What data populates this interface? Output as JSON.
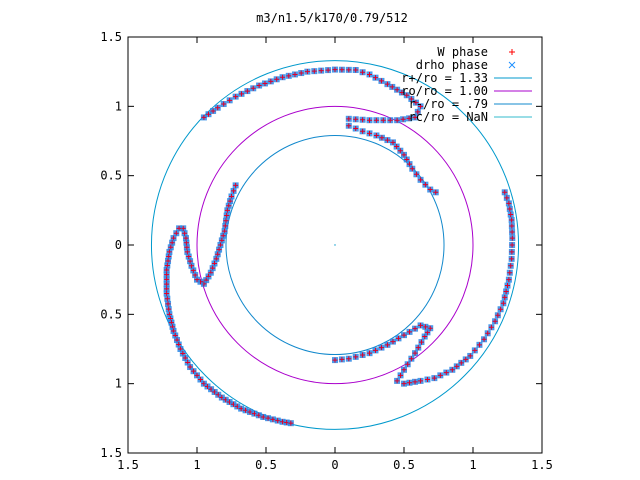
{
  "chart_data": {
    "type": "scatter",
    "title": "m3/n1.5/k170/0.79/512",
    "xlim": [
      -1.5,
      1.5
    ],
    "ylim": [
      -1.5,
      1.5
    ],
    "xticks": [
      -1.5,
      -1,
      -0.5,
      0,
      0.5,
      1,
      1.5
    ],
    "yticks": [
      -1.5,
      -1,
      -0.5,
      0,
      0.5,
      1,
      1.5
    ],
    "xtick_labels": [
      "1.5",
      "1",
      "0.5",
      "0",
      "0.5",
      "1",
      "1.5"
    ],
    "ytick_labels": [
      "1.5",
      "1",
      "0.5",
      "0",
      "0.5",
      "1",
      "1.5"
    ],
    "grid": false,
    "legend_position": "top-right",
    "series": [
      {
        "name": "W phase",
        "marker": "+",
        "color": "#ff0000"
      },
      {
        "name": "drho phase",
        "marker": "x",
        "color": "#1e90ff"
      }
    ],
    "circles": [
      {
        "name": "r+/ro = 1.33",
        "radius": 1.33,
        "color": "#0099cc"
      },
      {
        "name": "ro/ro = 1.00",
        "radius": 1.0,
        "color": "#aa00cc"
      },
      {
        "name": "r-/ro = .79",
        "radius": 0.79,
        "color": "#1188cc"
      },
      {
        "name": "rc/ro = NaN",
        "radius": null,
        "color": "#33bbcc"
      }
    ],
    "phase_curve": [
      [
        -0.95,
        0.92
      ],
      [
        -0.85,
        0.99
      ],
      [
        -0.72,
        1.07
      ],
      [
        -0.55,
        1.15
      ],
      [
        -0.38,
        1.21
      ],
      [
        -0.2,
        1.25
      ],
      [
        0.0,
        1.265
      ],
      [
        0.15,
        1.262
      ],
      [
        0.25,
        1.23
      ],
      [
        0.38,
        1.16
      ],
      [
        0.52,
        1.08
      ],
      [
        0.62,
        1.0
      ],
      [
        0.58,
        0.92
      ],
      [
        0.45,
        0.9
      ],
      [
        0.25,
        0.9
      ],
      [
        0.1,
        0.91
      ],
      [
        0.1,
        0.86
      ],
      [
        0.2,
        0.82
      ],
      [
        0.3,
        0.79
      ],
      [
        0.42,
        0.74
      ],
      [
        0.5,
        0.65
      ],
      [
        0.56,
        0.55
      ],
      [
        0.62,
        0.47
      ],
      [
        0.69,
        0.4
      ],
      [
        0.73,
        0.38
      ]
    ],
    "phase_curve_2": [
      [
        1.23,
        0.38
      ],
      [
        1.26,
        0.3
      ],
      [
        1.28,
        0.18
      ],
      [
        1.285,
        0.05
      ],
      [
        1.28,
        -0.1
      ],
      [
        1.26,
        -0.25
      ],
      [
        1.22,
        -0.42
      ],
      [
        1.16,
        -0.55
      ],
      [
        1.08,
        -0.68
      ],
      [
        0.98,
        -0.8
      ],
      [
        0.85,
        -0.9
      ],
      [
        0.72,
        -0.96
      ],
      [
        0.62,
        -0.98
      ],
      [
        0.5,
        -1.0
      ],
      [
        0.45,
        -0.98
      ],
      [
        0.5,
        -0.9
      ],
      [
        0.58,
        -0.78
      ],
      [
        0.65,
        -0.66
      ],
      [
        0.69,
        -0.6
      ],
      [
        0.62,
        -0.58
      ],
      [
        0.5,
        -0.65
      ],
      [
        0.38,
        -0.72
      ],
      [
        0.25,
        -0.78
      ],
      [
        0.1,
        -0.82
      ],
      [
        0.0,
        -0.83
      ]
    ],
    "phase_curve_3": [
      [
        -0.72,
        0.43
      ],
      [
        -0.75,
        0.35
      ],
      [
        -0.78,
        0.25
      ],
      [
        -0.8,
        0.1
      ],
      [
        -0.83,
        0.0
      ],
      [
        -0.86,
        -0.1
      ],
      [
        -0.9,
        -0.2
      ],
      [
        -0.95,
        -0.28
      ],
      [
        -1.0,
        -0.25
      ],
      [
        -1.04,
        -0.15
      ],
      [
        -1.07,
        -0.05
      ],
      [
        -1.08,
        0.05
      ],
      [
        -1.1,
        0.12
      ],
      [
        -1.13,
        0.12
      ],
      [
        -1.17,
        0.05
      ],
      [
        -1.2,
        -0.05
      ],
      [
        -1.22,
        -0.18
      ],
      [
        -1.22,
        -0.35
      ],
      [
        -1.2,
        -0.5
      ],
      [
        -1.17,
        -0.62
      ],
      [
        -1.12,
        -0.75
      ],
      [
        -1.05,
        -0.88
      ],
      [
        -0.95,
        -1.0
      ],
      [
        -0.82,
        -1.1
      ],
      [
        -0.68,
        -1.18
      ],
      [
        -0.52,
        -1.24
      ],
      [
        -0.38,
        -1.275
      ],
      [
        -0.32,
        -1.285
      ]
    ]
  }
}
